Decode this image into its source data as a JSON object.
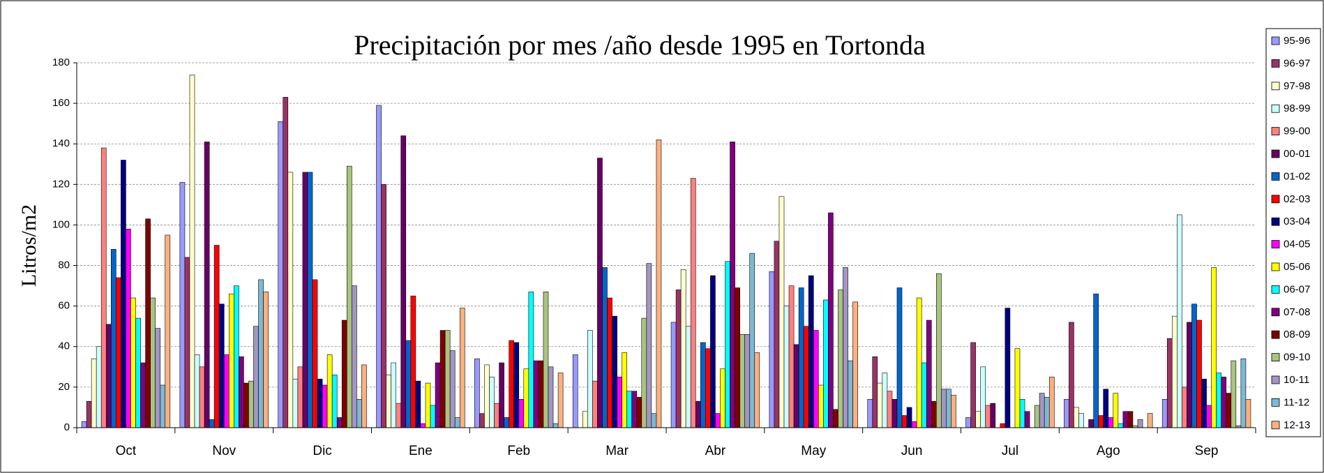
{
  "chart_data": {
    "type": "bar",
    "title": "Precipitación por mes /año desde 1995 en Tortonda",
    "y_label": "Litros/m2",
    "categories": [
      "Oct",
      "Nov",
      "Dic",
      "Ene",
      "Feb",
      "Mar",
      "Abr",
      "May",
      "Jun",
      "Jul",
      "Ago",
      "Sep"
    ],
    "ylim": [
      0,
      180
    ],
    "yticks": [
      0,
      20,
      40,
      60,
      80,
      100,
      120,
      140,
      160,
      180
    ],
    "grid": true,
    "legend": "right",
    "series": [
      {
        "name": "95-96",
        "color": "#9999ff",
        "values": [
          3,
          121,
          151,
          159,
          34,
          36,
          52,
          77,
          14,
          5,
          14,
          14
        ]
      },
      {
        "name": "96-97",
        "color": "#993366",
        "values": [
          13,
          84,
          163,
          120,
          7,
          0,
          68,
          92,
          35,
          42,
          52,
          44
        ]
      },
      {
        "name": "97-98",
        "color": "#ffffcc",
        "values": [
          34,
          174,
          126,
          26,
          31,
          8,
          78,
          114,
          22,
          8,
          10,
          55
        ]
      },
      {
        "name": "98-99",
        "color": "#ccffff",
        "values": [
          40,
          36,
          24,
          32,
          25,
          48,
          50,
          60,
          27,
          30,
          7,
          105
        ]
      },
      {
        "name": "99-00",
        "color": "#ff8080",
        "values": [
          138,
          30,
          30,
          12,
          12,
          23,
          123,
          70,
          18,
          11,
          0,
          20
        ]
      },
      {
        "name": "00-01",
        "color": "#660066",
        "values": [
          51,
          141,
          126,
          144,
          32,
          133,
          13,
          41,
          14,
          12,
          4,
          52
        ]
      },
      {
        "name": "01-02",
        "color": "#0066cc",
        "values": [
          88,
          4,
          126,
          43,
          5,
          79,
          42,
          69,
          69,
          0,
          66,
          61
        ]
      },
      {
        "name": "02-03",
        "color": "#ff0000",
        "values": [
          74,
          90,
          73,
          65,
          43,
          64,
          39,
          50,
          6,
          2,
          6,
          53
        ]
      },
      {
        "name": "03-04",
        "color": "#000080",
        "values": [
          132,
          61,
          24,
          23,
          42,
          55,
          75,
          75,
          10,
          59,
          19,
          24
        ]
      },
      {
        "name": "04-05",
        "color": "#ff00ff",
        "values": [
          98,
          36,
          21,
          2,
          14,
          25,
          7,
          48,
          3,
          0,
          5,
          11
        ]
      },
      {
        "name": "05-06",
        "color": "#ffff00",
        "values": [
          64,
          66,
          36,
          22,
          29,
          37,
          29,
          21,
          64,
          39,
          17,
          79
        ]
      },
      {
        "name": "06-07",
        "color": "#00ffff",
        "values": [
          54,
          70,
          26,
          11,
          67,
          18,
          82,
          63,
          32,
          14,
          2,
          27
        ]
      },
      {
        "name": "07-08",
        "color": "#800080",
        "values": [
          32,
          35,
          5,
          32,
          33,
          18,
          141,
          106,
          53,
          8,
          8,
          25
        ]
      },
      {
        "name": "08-09",
        "color": "#800000",
        "values": [
          103,
          22,
          53,
          48,
          33,
          15,
          69,
          9,
          13,
          0,
          8,
          17
        ]
      },
      {
        "name": "09-10",
        "color": "#a9c47f",
        "values": [
          64,
          23,
          129,
          48,
          67,
          54,
          46,
          68,
          76,
          11,
          1,
          33
        ]
      },
      {
        "name": "10-11",
        "color": "#a396c3",
        "values": [
          49,
          50,
          70,
          38,
          30,
          81,
          46,
          79,
          19,
          17,
          4,
          1
        ]
      },
      {
        "name": "11-12",
        "color": "#7fb8d4",
        "values": [
          21,
          73,
          14,
          5,
          2,
          7,
          86,
          33,
          19,
          15,
          0,
          34
        ]
      },
      {
        "name": "12-13",
        "color": "#fab07f",
        "values": [
          95,
          67,
          31,
          59,
          27,
          142,
          37,
          62,
          16,
          25,
          7,
          14
        ]
      }
    ]
  }
}
